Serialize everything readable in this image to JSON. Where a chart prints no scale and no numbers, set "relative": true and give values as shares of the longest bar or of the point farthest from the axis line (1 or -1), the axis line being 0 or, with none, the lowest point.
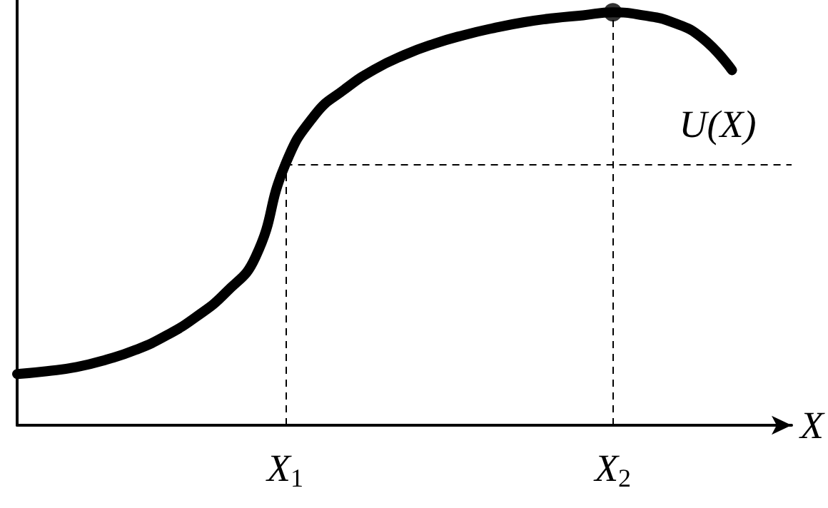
{
  "chart_data": {
    "type": "line",
    "xlabel": "X",
    "relative": true,
    "categories": [
      null,
      null,
      null,
      null,
      null,
      null,
      null,
      null,
      null,
      "X$_{1}$",
      null,
      null,
      null,
      null,
      null,
      null,
      null,
      null,
      null,
      null,
      "X$_{2}$",
      null,
      null,
      null,
      null,
      null,
      null
    ],
    "series": [
      {
        "name": "U(X)",
        "color": "#000000",
        "marker": "none",
        "values": [
          0.124,
          0.131,
          0.141,
          0.159,
          0.183,
          0.217,
          0.262,
          0.321,
          0.407,
          0.631,
          0.752,
          0.814,
          0.862,
          0.897,
          0.924,
          0.945,
          0.962,
          0.976,
          0.986,
          0.993,
          1,
          0.993,
          0.976,
          0.938,
          0.86,
          null,
          null
        ]
      },
      {
        "type": "scatter",
        "x": [
          "X$_{2}$"
        ],
        "color": "#000000",
        "marker": "circle",
        "values": [
          1
        ]
      }
    ],
    "ref_lines": [
      {
        "axis": "x",
        "value": "X$_{1}$",
        "line_style": "dashed"
      },
      {
        "axis": "x",
        "value": "X$_{2}$",
        "line_style": "dashed"
      },
      {
        "axis": "y",
        "value": 0.631,
        "line_style": "dashed"
      }
    ]
  }
}
